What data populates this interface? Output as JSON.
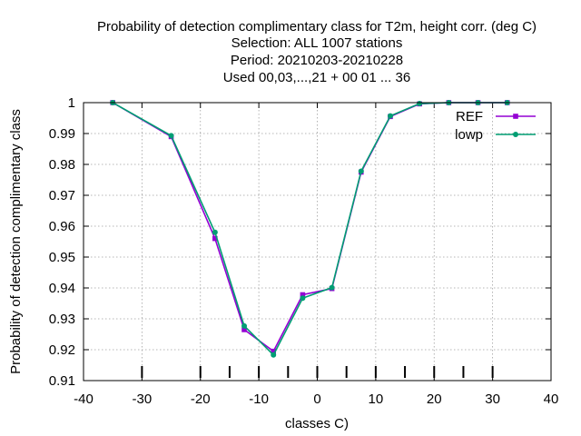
{
  "chart_data": {
    "type": "line",
    "title_lines": [
      "Probability of detection complimentary class  for T2m, height corr. (deg C)",
      "Selection: ALL   1007 stations",
      "Period: 20210203-20210228",
      "Used  00,03,...,21  + 00 01 ... 36"
    ],
    "xlabel": "classes C)",
    "ylabel": "Probability of detection complimentary class",
    "xlim": [
      -40,
      40
    ],
    "ylim": [
      0.91,
      1.0
    ],
    "x_ticks": [
      -40,
      -30,
      -20,
      -10,
      0,
      10,
      20,
      30,
      40
    ],
    "y_ticks": [
      0.91,
      0.92,
      0.93,
      0.94,
      0.95,
      0.96,
      0.97,
      0.98,
      0.99,
      1.0
    ],
    "x_tick_labels": [
      "-40",
      "-30",
      "-20",
      "-10",
      "0",
      "10",
      "20",
      "30",
      "40"
    ],
    "y_tick_labels": [
      "0.91",
      "0.92",
      "0.93",
      "0.94",
      "0.95",
      "0.96",
      "0.97",
      "0.98",
      "0.99",
      "1"
    ],
    "class_boundary_ticks": [
      -30,
      -20,
      -15,
      -10,
      -5,
      0,
      5,
      10,
      15,
      20,
      25,
      30
    ],
    "grid": true,
    "legend_position": "top-right",
    "x": [
      -35,
      -25,
      -17.5,
      -12.5,
      -7.5,
      -2.5,
      2.5,
      7.5,
      12.5,
      17.5,
      22.5,
      27.5,
      32.5
    ],
    "series": [
      {
        "name": "REF",
        "color": "#9400d3",
        "marker": "square",
        "values": [
          1.0,
          0.989,
          0.956,
          0.9265,
          0.9195,
          0.9378,
          0.9398,
          0.9775,
          0.9955,
          0.9996,
          1.0,
          1.0,
          1.0
        ]
      },
      {
        "name": "lowp",
        "color": "#009e73",
        "marker": "circle",
        "values": [
          1.0,
          0.9893,
          0.958,
          0.9277,
          0.9183,
          0.9367,
          0.9401,
          0.9778,
          0.9957,
          0.9997,
          1.0,
          1.0,
          1.0
        ]
      }
    ]
  }
}
